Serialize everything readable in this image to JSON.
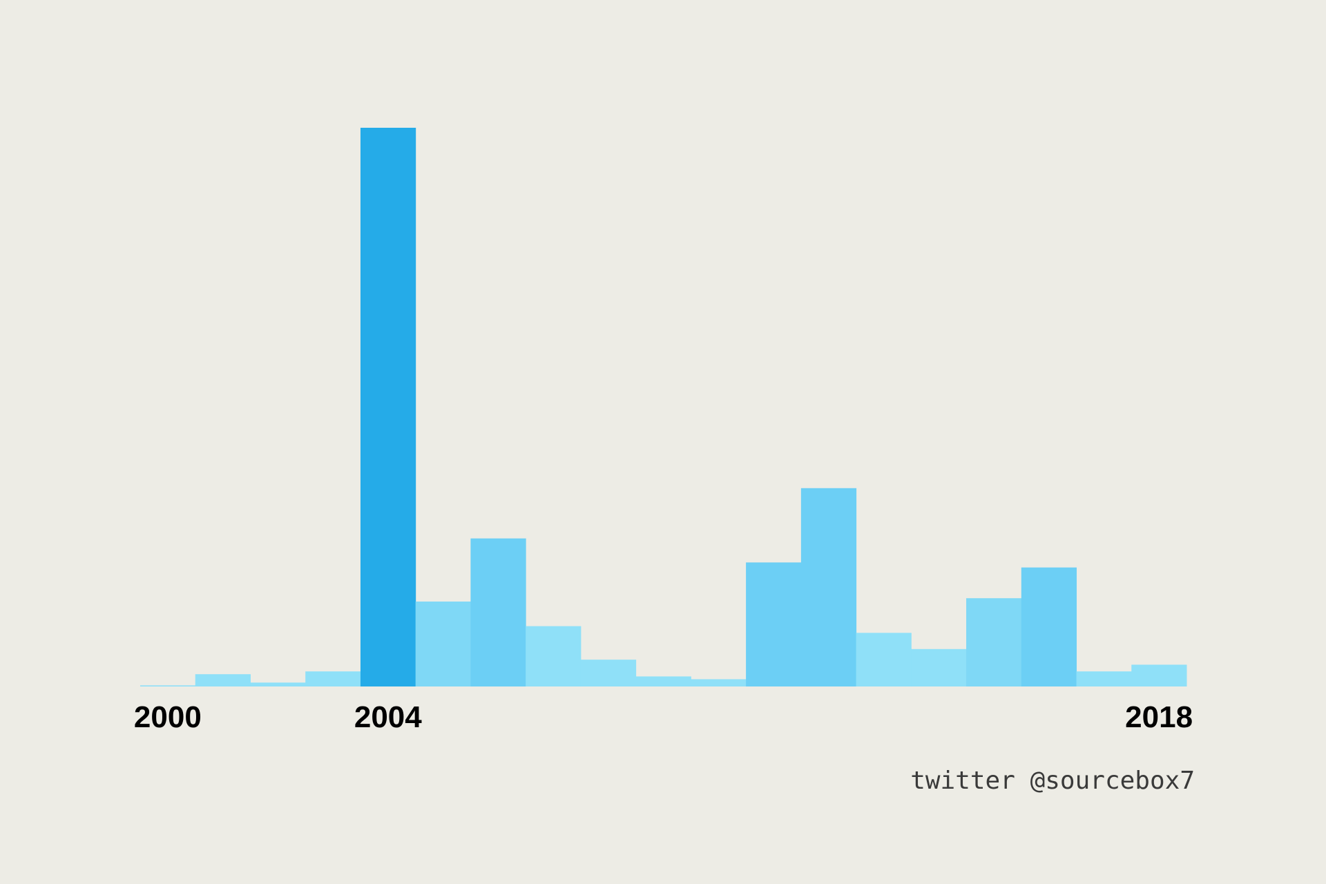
{
  "chart_data": {
    "type": "bar",
    "categories": [
      "2000",
      "2001",
      "2002",
      "2003",
      "2004",
      "2005",
      "2006",
      "2007",
      "2008",
      "2009",
      "2010",
      "2011",
      "2012",
      "2013",
      "2014",
      "2015",
      "2016",
      "2017",
      "2018"
    ],
    "values": [
      0.2,
      2.2,
      0.7,
      2.7,
      100,
      15.2,
      26.5,
      10.8,
      4.8,
      1.8,
      1.3,
      22.2,
      35.5,
      9.6,
      6.7,
      15.8,
      21.3,
      2.7,
      3.9
    ],
    "tick_labels": [
      "2000",
      "2004",
      "2018"
    ],
    "ylim": [
      0,
      100
    ],
    "grid": false,
    "colors": {
      "highlight": "#25abe8",
      "high": "#6ccff5",
      "mid": "#7fd8f6",
      "low": "#8fe0f8",
      "background": "#edece5"
    }
  },
  "credit": "twitter @sourcebox7"
}
